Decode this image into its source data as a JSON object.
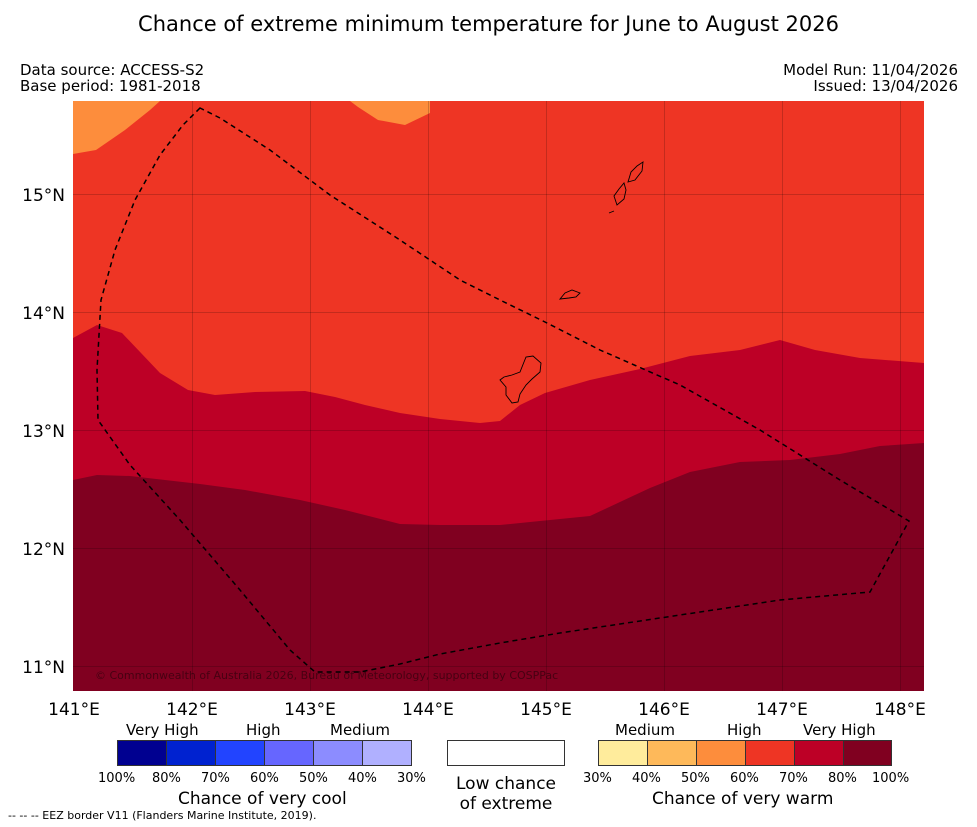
{
  "title": "Chance of extreme minimum temperature for June to August 2026",
  "data_source": "Data source: ACCESS-S2",
  "base_period": "Base period: 1981-2018",
  "model_run": "Model Run: 11/04/2026",
  "issued": "Issued: 13/04/2026",
  "copyright": "© Commonwealth of Australia 2026, Bureau of Meteorology, supported by COSPPac",
  "footnote": "--  --  -- EEZ border V11 (Flanders Marine Institute, 2019).",
  "map": {
    "lon_labels": [
      "141°E",
      "142°E",
      "143°E",
      "144°E",
      "145°E",
      "146°E",
      "147°E",
      "148°E"
    ],
    "lat_labels": [
      "15°N",
      "14°N",
      "13°N",
      "12°N",
      "11°N"
    ],
    "zones": {
      "high_50_60": "#fd8d3c",
      "very_high_60_70": "#ee3524",
      "very_high_70_80": "#bd0026",
      "very_high_80_100": "#800020"
    }
  },
  "legend": {
    "cool": {
      "categories": [
        "Very High",
        "High",
        "Medium"
      ],
      "percents": [
        "100%",
        "80%",
        "70%",
        "60%",
        "50%",
        "40%",
        "30%"
      ],
      "colors": [
        "#000090",
        "#0022d0",
        "#2244ff",
        "#6666ff",
        "#8c8cff",
        "#b0b0ff"
      ],
      "title": "Chance of very cool"
    },
    "neutral": {
      "line1": "Low chance",
      "line2": "of extreme",
      "color": "#ffffff"
    },
    "warm": {
      "categories": [
        "Medium",
        "High",
        "Very High"
      ],
      "percents": [
        "30%",
        "40%",
        "50%",
        "60%",
        "70%",
        "80%",
        "100%"
      ],
      "colors": [
        "#ffec9c",
        "#feb95a",
        "#fd8d3c",
        "#ee3524",
        "#bd0026",
        "#800020"
      ],
      "title": "Chance of very warm"
    }
  }
}
